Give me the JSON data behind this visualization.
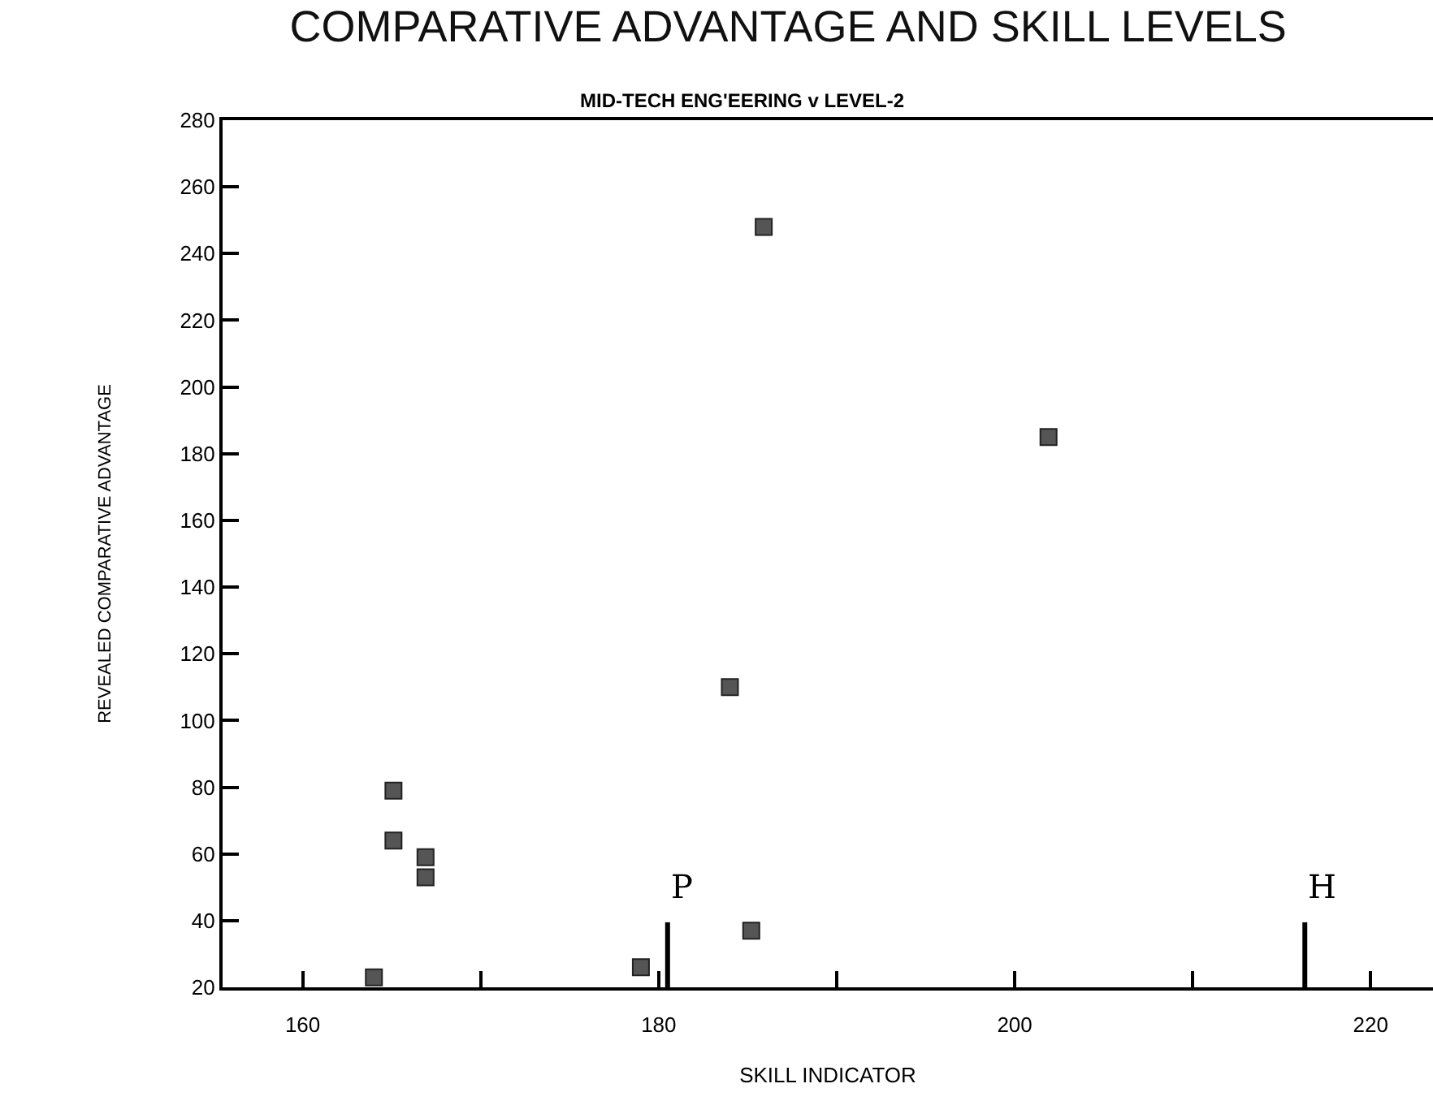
{
  "chart_data": {
    "type": "scatter",
    "title": "COMPARATIVE ADVANTAGE AND SKILL LEVELS",
    "subtitle": "MID-TECH ENG'EERING v LEVEL-2",
    "xlabel": "SKILL INDICATOR",
    "ylabel": "REVEALED COMPARATIVE ADVANTAGE",
    "x": [
      164.0,
      165.1,
      165.1,
      166.9,
      166.9,
      179.0,
      184.0,
      185.2,
      185.9,
      201.9
    ],
    "series": [
      {
        "color": "#555555",
        "values": [
          23,
          79,
          64,
          59,
          53,
          26,
          110,
          37,
          248,
          185
        ]
      }
    ],
    "xlim": [
      155.5,
      223.5
    ],
    "xticks": [
      160,
      {
        "value": 170,
        "label": null
      },
      180,
      {
        "value": 190,
        "label": null
      },
      200,
      {
        "value": 210,
        "label": null
      },
      220
    ],
    "ylim": [
      20,
      280
    ],
    "yticks": [
      20,
      40,
      60,
      80,
      100,
      120,
      140,
      160,
      180,
      200,
      220,
      240,
      260,
      280
    ],
    "ref_lines": [
      {
        "axis": "x",
        "value": 180.5,
        "label": "P",
        "color": "#000000"
      },
      {
        "axis": "x",
        "value": 216.3,
        "label": "H",
        "color": "#000000"
      }
    ],
    "grid": false,
    "marker": "square"
  }
}
